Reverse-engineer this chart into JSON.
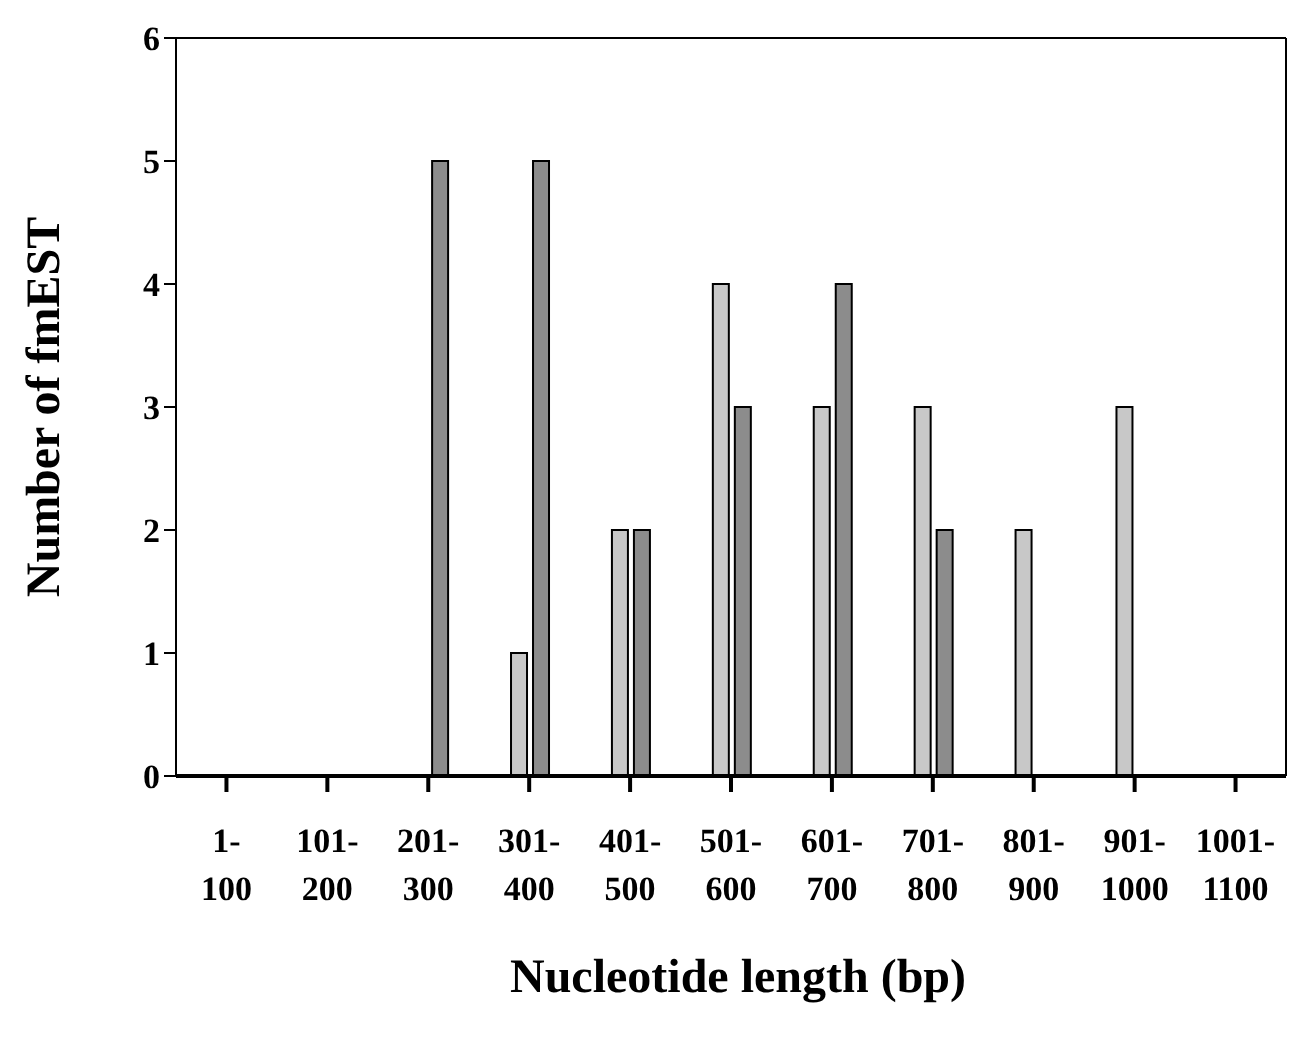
{
  "chart_data": {
    "type": "bar",
    "xlabel": "Nucleotide length (bp)",
    "ylabel": "Number of fmEST",
    "categories": [
      "1-100",
      "101-200",
      "201-300",
      "301-400",
      "401-500",
      "501-600",
      "601-700",
      "701-800",
      "801-900",
      "901-1000",
      "1001-1100"
    ],
    "series": [
      {
        "color": "#c8c8c8",
        "values": [
          0,
          0,
          0,
          1,
          2,
          4,
          3,
          3,
          2,
          3,
          0
        ]
      },
      {
        "color": "#8c8c8c",
        "values": [
          0,
          0,
          5,
          5,
          2,
          3,
          4,
          2,
          0,
          0,
          0
        ]
      }
    ],
    "ylim": [
      0,
      6
    ],
    "yticks": [
      0,
      1,
      2,
      3,
      4,
      5,
      6
    ],
    "grid": false,
    "legend": false
  }
}
